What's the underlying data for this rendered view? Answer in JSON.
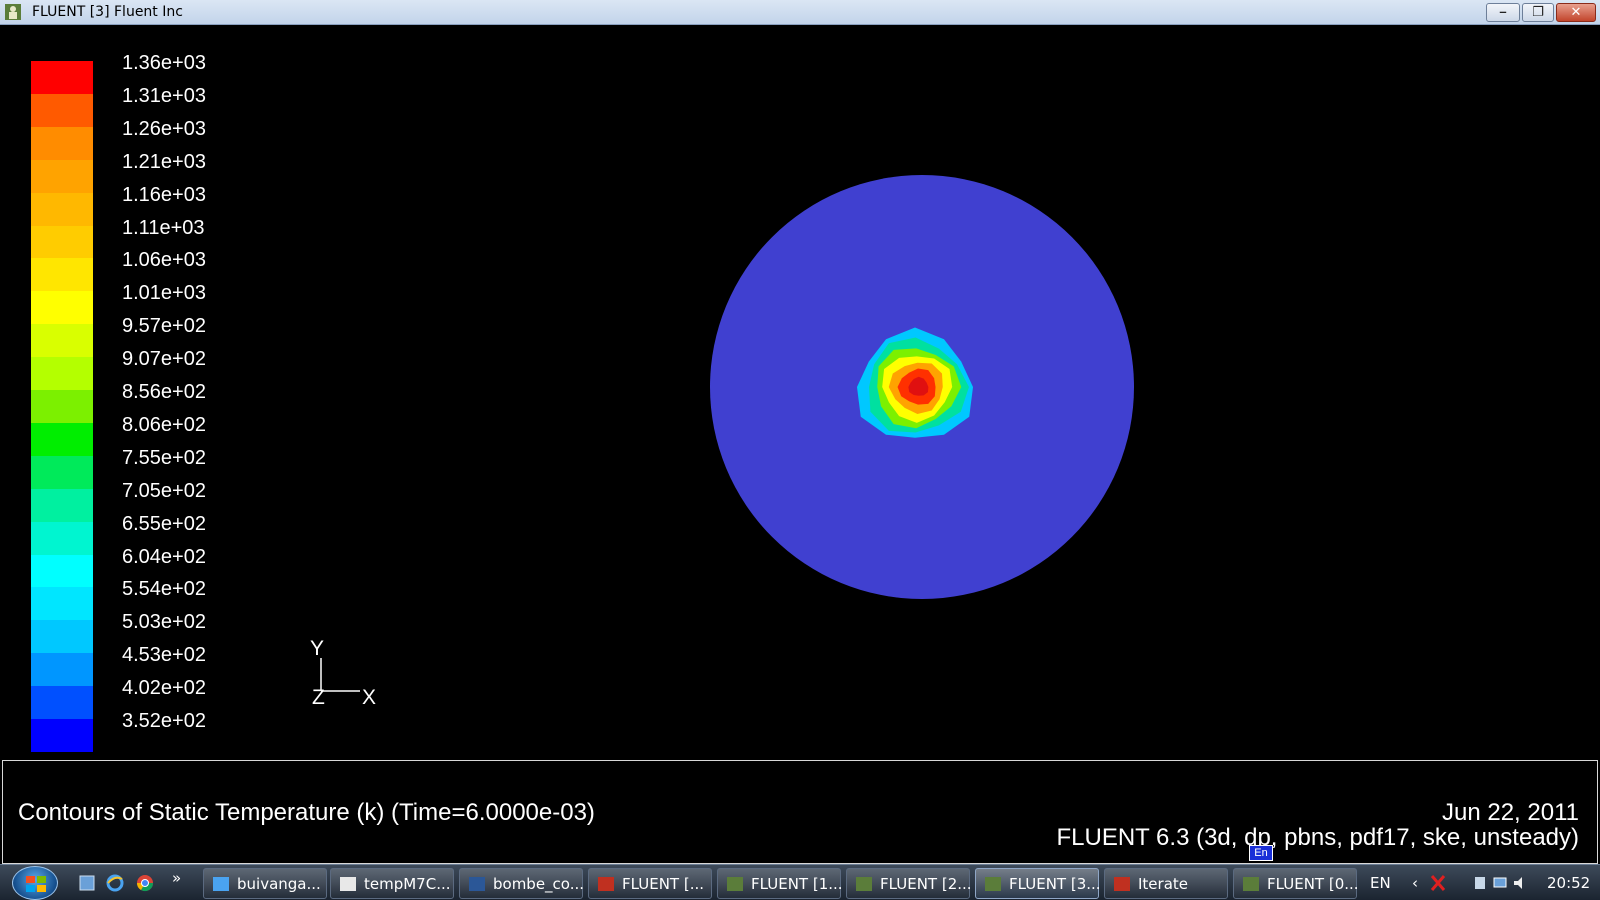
{
  "window": {
    "title": "FLUENT [3] Fluent Inc",
    "icon": "fluent-app-icon",
    "controls": [
      "minimize",
      "restore",
      "close"
    ]
  },
  "legend": {
    "labels": [
      "1.36e+03",
      "1.31e+03",
      "1.26e+03",
      "1.21e+03",
      "1.16e+03",
      "1.11e+03",
      "1.06e+03",
      "1.01e+03",
      "9.57e+02",
      "9.07e+02",
      "8.56e+02",
      "8.06e+02",
      "7.55e+02",
      "7.05e+02",
      "6.55e+02",
      "6.04e+02",
      "5.54e+02",
      "5.03e+02",
      "4.53e+02",
      "4.02e+02",
      "3.52e+02"
    ],
    "colors": [
      "#ff0000",
      "#ff5a00",
      "#ff8c00",
      "#ffa300",
      "#ffb800",
      "#ffcc00",
      "#ffe600",
      "#ffff00",
      "#d9ff00",
      "#b4ff00",
      "#7cf000",
      "#00ee00",
      "#00ea5a",
      "#00f0a0",
      "#00f5d0",
      "#00ffff",
      "#00e6ff",
      "#00c8ff",
      "#0096ff",
      "#0050ff",
      "#0000ff"
    ]
  },
  "axes": {
    "y_label": "Y",
    "z_label": "Z",
    "x_label": "X"
  },
  "contour": {
    "background_color": "#4040d0",
    "hotspot_colors": [
      "#00c8ff",
      "#00e0a0",
      "#7cf000",
      "#ffff00",
      "#ffa300",
      "#ff3000",
      "#e01010"
    ]
  },
  "caption": {
    "title": "Contours of Static Temperature (k)  (Time=6.0000e-03)",
    "date": "Jun 22, 2011",
    "version": "FLUENT 6.3 (3d, dp, pbns, pdf17, ske, unsteady)"
  },
  "taskbar": {
    "tasks": [
      {
        "label": "buivanga...",
        "icon": "ie-icon"
      },
      {
        "label": "tempM7C...",
        "icon": "document-icon"
      },
      {
        "label": "bombe_co...",
        "icon": "word-icon"
      },
      {
        "label": "FLUENT  [...",
        "icon": "fluent-graphics-icon"
      },
      {
        "label": "FLUENT [1...",
        "icon": "fluent-app-icon"
      },
      {
        "label": "FLUENT [2...",
        "icon": "fluent-app-icon"
      },
      {
        "label": "FLUENT [3...",
        "icon": "fluent-app-icon",
        "active": true
      },
      {
        "label": "Iterate",
        "icon": "fluent-graphics-icon"
      },
      {
        "label": "FLUENT [0...",
        "icon": "fluent-app-icon"
      }
    ],
    "language": "EN",
    "lang_tooltip": "En",
    "clock": "20:52"
  }
}
